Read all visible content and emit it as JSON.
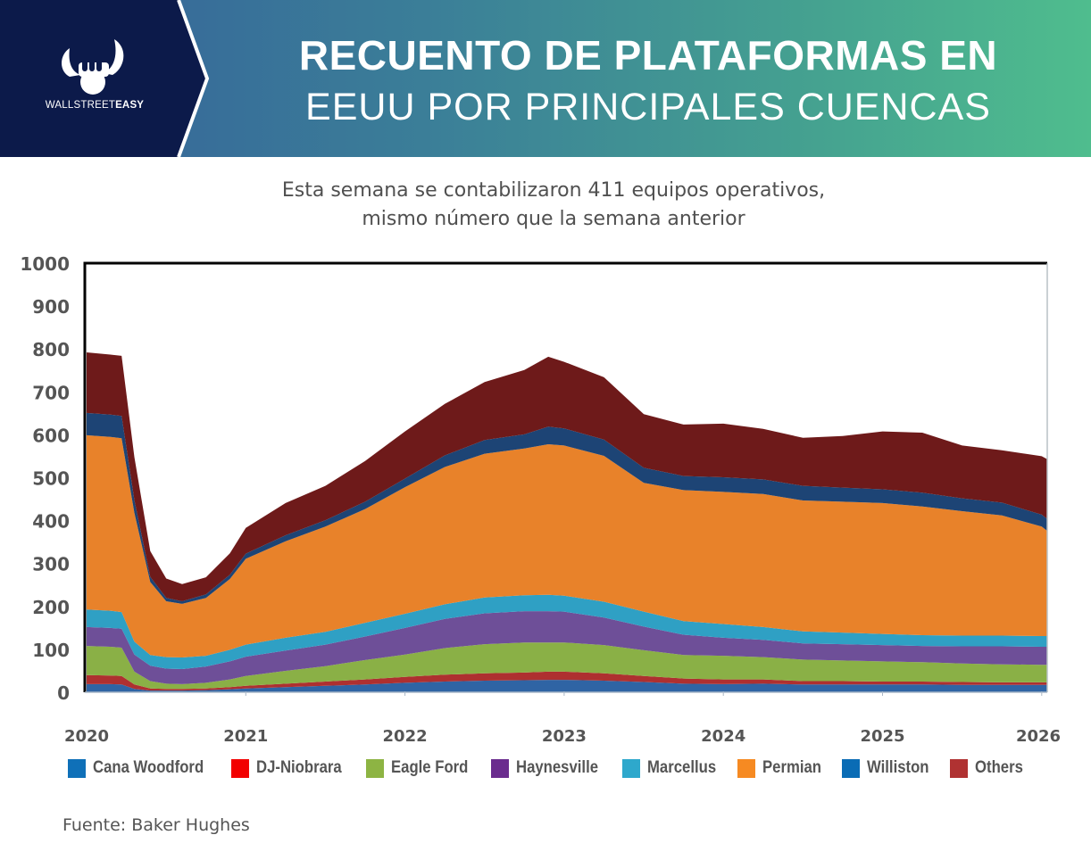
{
  "header": {
    "logo_text_light": "WALLSTREET",
    "logo_text_bold": "EASY",
    "title_line1": "RECUENTO DE PLATAFORMAS EN",
    "title_line2": "EEUU POR PRINCIPALES CUENCAS",
    "colors": {
      "logo_bg": "#0c1a4a",
      "gradient_start": "#35609a",
      "gradient_end": "#4fbd8e"
    }
  },
  "subtitle": {
    "line1": "Esta semana se contabilizaron 411 equipos operativos,",
    "line2": "mismo número que la semana anterior"
  },
  "source": "Fuente: Baker Hughes",
  "chart_data": {
    "type": "area",
    "stacked": true,
    "title": "Recuento de plataformas en EEUU por principales cuencas",
    "xlabel": "",
    "ylabel": "",
    "xlim": [
      2020,
      2026.05
    ],
    "ylim": [
      0,
      1000
    ],
    "yticks": [
      0,
      100,
      200,
      300,
      400,
      500,
      600,
      700,
      800,
      900,
      1000
    ],
    "xticks": [
      "2020",
      "2021",
      "2022",
      "2023",
      "2024",
      "2025",
      "2026"
    ],
    "grid": false,
    "legend_position": "bottom",
    "x": [
      2020.0,
      2020.15,
      2020.22,
      2020.3,
      2020.4,
      2020.5,
      2020.6,
      2020.75,
      2020.9,
      2021.0,
      2021.25,
      2021.5,
      2021.75,
      2022.0,
      2022.25,
      2022.5,
      2022.75,
      2022.9,
      2023.0,
      2023.25,
      2023.5,
      2023.75,
      2024.0,
      2024.25,
      2024.5,
      2024.75,
      2025.0,
      2025.25,
      2025.5,
      2025.75,
      2026.0,
      2026.05
    ],
    "series": [
      {
        "name": "Cana Woodford",
        "color": "#2f64a4",
        "values": [
          19,
          19,
          18,
          8,
          4,
          4,
          4,
          5,
          7,
          9,
          12,
          15,
          18,
          22,
          25,
          27,
          28,
          29,
          29,
          27,
          24,
          20,
          19,
          20,
          18,
          18,
          18,
          18,
          17,
          17,
          17,
          17
        ]
      },
      {
        "name": "DJ-Niobrara",
        "color": "#ae3030",
        "values": [
          21,
          20,
          20,
          10,
          5,
          4,
          4,
          4,
          5,
          6,
          8,
          10,
          12,
          14,
          16,
          17,
          18,
          19,
          19,
          17,
          14,
          12,
          11,
          10,
          8,
          8,
          7,
          7,
          7,
          6,
          6,
          6
        ]
      },
      {
        "name": "Eagle Ford",
        "color": "#8ab046",
        "values": [
          68,
          67,
          66,
          30,
          17,
          12,
          11,
          13,
          18,
          23,
          30,
          36,
          45,
          52,
          62,
          68,
          70,
          68,
          68,
          66,
          60,
          55,
          55,
          52,
          50,
          48,
          47,
          45,
          43,
          42,
          41,
          41
        ]
      },
      {
        "name": "Haynesville",
        "color": "#6e4f98",
        "values": [
          44,
          44,
          44,
          40,
          36,
          35,
          35,
          38,
          42,
          45,
          47,
          50,
          55,
          62,
          68,
          72,
          73,
          73,
          72,
          64,
          55,
          47,
          42,
          40,
          38,
          38,
          38,
          38,
          40,
          42,
          42,
          42
        ]
      },
      {
        "name": "Marcellus",
        "color": "#2fa0c4",
        "values": [
          41,
          40,
          39,
          30,
          25,
          27,
          27,
          25,
          27,
          28,
          30,
          30,
          32,
          33,
          34,
          37,
          37,
          38,
          37,
          37,
          35,
          32,
          32,
          30,
          28,
          27,
          26,
          25,
          25,
          25,
          25,
          25
        ]
      },
      {
        "name": "Permian",
        "color": "#e8822a",
        "values": [
          406,
          405,
          405,
          300,
          170,
          130,
          125,
          135,
          165,
          200,
          225,
          245,
          265,
          295,
          320,
          335,
          342,
          351,
          350,
          340,
          300,
          305,
          308,
          310,
          305,
          305,
          305,
          300,
          290,
          280,
          255,
          245
        ]
      },
      {
        "name": "Williston",
        "color": "#1d4475",
        "values": [
          52,
          52,
          52,
          30,
          12,
          8,
          6,
          8,
          10,
          12,
          14,
          15,
          17,
          20,
          27,
          32,
          33,
          41,
          40,
          38,
          35,
          33,
          34,
          34,
          34,
          33,
          32,
          32,
          30,
          30,
          28,
          28
        ]
      },
      {
        "name": "Others",
        "color": "#6e1a1a",
        "values": [
          141,
          140,
          140,
          100,
          60,
          45,
          40,
          40,
          50,
          60,
          75,
          80,
          95,
          110,
          120,
          135,
          150,
          163,
          155,
          145,
          125,
          120,
          125,
          118,
          112,
          120,
          135,
          140,
          123,
          122,
          136,
          139
        ]
      }
    ]
  }
}
